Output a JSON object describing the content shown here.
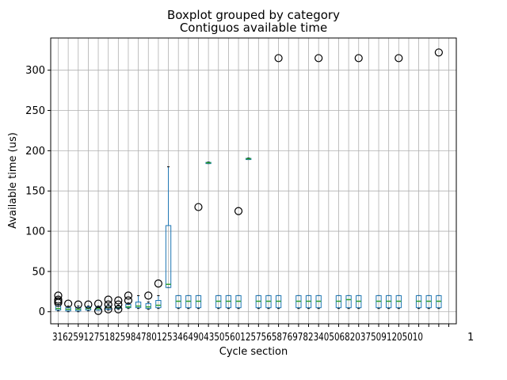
{
  "chart_data": {
    "type": "boxplot",
    "suptitle": "Boxplot grouped by category",
    "title": "Contiguos available time",
    "xlabel": "Cycle section",
    "ylabel": "Available time (us)",
    "ylim": [
      -15,
      340
    ],
    "yticks": [
      0,
      50,
      100,
      150,
      200,
      250,
      300
    ],
    "grid": true,
    "x_tick_text": "31625912751825984780125346490435056012575658769782340506820375091205010",
    "x_tick_text_end": "1",
    "colors": {
      "box": "#1f77b4",
      "median": "#2ca02c",
      "grid": "#b0b0b0",
      "outlier": "#000000"
    },
    "boxes": [
      {
        "q1": 2,
        "med": 4,
        "q3": 7,
        "low": 1,
        "high": 9,
        "outliers": [
          11,
          13,
          15,
          20
        ]
      },
      {
        "q1": 1,
        "med": 3,
        "q3": 5,
        "low": 0,
        "high": 7,
        "outliers": [
          10
        ]
      },
      {
        "q1": 1,
        "med": 3,
        "q3": 5,
        "low": 0,
        "high": 7,
        "outliers": [
          9
        ]
      },
      {
        "q1": 2,
        "med": 4,
        "q3": 6,
        "low": 1,
        "high": 7,
        "outliers": [
          9
        ]
      },
      {
        "q1": 2,
        "med": 4,
        "q3": 6,
        "low": 2,
        "high": 7,
        "outliers": [
          1,
          10
        ]
      },
      {
        "q1": 3,
        "med": 5,
        "q3": 7,
        "low": 2,
        "high": 9,
        "outliers": [
          3,
          9,
          15
        ]
      },
      {
        "q1": 4,
        "med": 5,
        "q3": 7,
        "low": 3,
        "high": 8,
        "outliers": [
          3,
          9,
          14
        ]
      },
      {
        "q1": 5,
        "med": 6,
        "q3": 9,
        "low": 4,
        "high": 11,
        "outliers": [
          14,
          20
        ]
      },
      {
        "q1": 5,
        "med": 7,
        "q3": 12,
        "low": 4,
        "high": 20,
        "outliers": []
      },
      {
        "q1": 4,
        "med": 6,
        "q3": 10,
        "low": 3,
        "high": 12,
        "outliers": [
          20
        ]
      },
      {
        "q1": 5,
        "med": 8,
        "q3": 14,
        "low": 4,
        "high": 20,
        "outliers": [
          35
        ]
      },
      {
        "q1": 30,
        "med": 34,
        "q3": 107,
        "low": 30,
        "high": 180,
        "outliers": []
      },
      {
        "q1": 5,
        "med": 13,
        "q3": 20,
        "low": 4,
        "high": 20,
        "outliers": []
      },
      {
        "q1": 5,
        "med": 13,
        "q3": 20,
        "low": 4,
        "high": 20,
        "outliers": []
      },
      {
        "q1": 5,
        "med": 13,
        "q3": 20,
        "low": 4,
        "high": 20,
        "outliers": [
          130
        ]
      },
      {
        "q1": 184,
        "med": 185,
        "q3": 185.5,
        "low": 184,
        "high": 186,
        "outliers": []
      },
      {
        "q1": 5,
        "med": 13,
        "q3": 20,
        "low": 4,
        "high": 20,
        "outliers": []
      },
      {
        "q1": 5,
        "med": 13,
        "q3": 20,
        "low": 4,
        "high": 20,
        "outliers": []
      },
      {
        "q1": 5,
        "med": 13,
        "q3": 20,
        "low": 4,
        "high": 20,
        "outliers": [
          125
        ]
      },
      {
        "q1": 189,
        "med": 190,
        "q3": 190.5,
        "low": 189,
        "high": 191,
        "outliers": []
      },
      {
        "q1": 5,
        "med": 13,
        "q3": 20,
        "low": 4,
        "high": 20,
        "outliers": []
      },
      {
        "q1": 5,
        "med": 13,
        "q3": 20,
        "low": 4,
        "high": 20,
        "outliers": []
      },
      {
        "q1": 5,
        "med": 13,
        "q3": 20,
        "low": 4,
        "high": 20,
        "outliers": [
          315
        ]
      },
      null,
      {
        "q1": 5,
        "med": 13,
        "q3": 20,
        "low": 4,
        "high": 20,
        "outliers": []
      },
      {
        "q1": 5,
        "med": 13,
        "q3": 20,
        "low": 4,
        "high": 20,
        "outliers": []
      },
      {
        "q1": 5,
        "med": 13,
        "q3": 20,
        "low": 4,
        "high": 20,
        "outliers": [
          315
        ]
      },
      null,
      {
        "q1": 5,
        "med": 13,
        "q3": 20,
        "low": 4,
        "high": 20,
        "outliers": []
      },
      {
        "q1": 5,
        "med": 15,
        "q3": 20,
        "low": 4,
        "high": 20,
        "outliers": []
      },
      {
        "q1": 5,
        "med": 13,
        "q3": 20,
        "low": 4,
        "high": 20,
        "outliers": [
          315
        ]
      },
      null,
      {
        "q1": 5,
        "med": 13,
        "q3": 20,
        "low": 4,
        "high": 20,
        "outliers": []
      },
      {
        "q1": 5,
        "med": 13,
        "q3": 20,
        "low": 4,
        "high": 20,
        "outliers": []
      },
      {
        "q1": 5,
        "med": 13,
        "q3": 20,
        "low": 4,
        "high": 20,
        "outliers": [
          315
        ]
      },
      null,
      {
        "q1": 5,
        "med": 13,
        "q3": 20,
        "low": 4,
        "high": 20,
        "outliers": []
      },
      {
        "q1": 5,
        "med": 13,
        "q3": 20,
        "low": 4,
        "high": 20,
        "outliers": []
      },
      {
        "q1": 5,
        "med": 13,
        "q3": 20,
        "low": 4,
        "high": 20,
        "outliers": [
          322
        ]
      },
      null
    ]
  }
}
